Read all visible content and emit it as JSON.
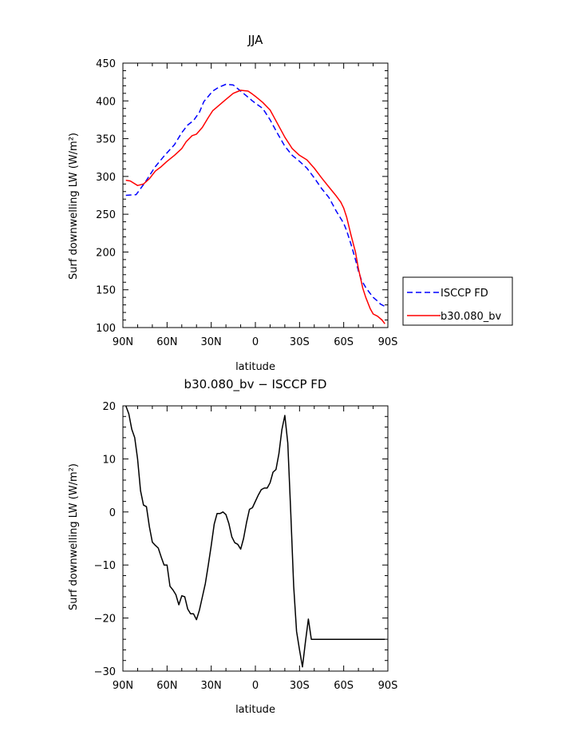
{
  "chart_data": [
    {
      "type": "line",
      "title": "JJA",
      "xlabel": "latitude",
      "ylabel": "Surf downwelling LW (W/m²)",
      "xlim": [
        90,
        -90
      ],
      "ylim": [
        100,
        450
      ],
      "x_ticks": [
        90,
        60,
        30,
        0,
        -30,
        -60,
        -90
      ],
      "x_tick_labels": [
        "90N",
        "60N",
        "30N",
        "0",
        "30S",
        "60S",
        "90S"
      ],
      "y_ticks": [
        100,
        150,
        200,
        250,
        300,
        350,
        400,
        450
      ],
      "y_tick_labels": [
        "100",
        "150",
        "200",
        "250",
        "300",
        "350",
        "400",
        "450"
      ],
      "legend_position": "outside-right",
      "series": [
        {
          "name": "ISCCP FD",
          "color": "#0000ff",
          "style": "dashed",
          "x": [
            88,
            81,
            75,
            68,
            62,
            55,
            50,
            46,
            42,
            38,
            35,
            32,
            29,
            25,
            20,
            15,
            10,
            5,
            2,
            0,
            -5,
            -10,
            -15,
            -20,
            -25,
            -30,
            -35,
            -40,
            -45,
            -50,
            -55,
            -60,
            -62,
            -65,
            -68,
            -70,
            -72,
            -75,
            -78,
            -80,
            -83,
            -85,
            -88
          ],
          "y": [
            275,
            276,
            292,
            313,
            327,
            342,
            358,
            368,
            374,
            385,
            399,
            406,
            413,
            418,
            422,
            421,
            413,
            405,
            400,
            397,
            390,
            375,
            357,
            340,
            328,
            320,
            311,
            298,
            284,
            272,
            254,
            238,
            228,
            210,
            190,
            175,
            163,
            153,
            145,
            140,
            135,
            131,
            128
          ]
        },
        {
          "name": "b30.080_bv",
          "color": "#ff0000",
          "style": "solid",
          "x": [
            88,
            85,
            80,
            76,
            72,
            68,
            64,
            60,
            55,
            50,
            47,
            43,
            40,
            36,
            32,
            29,
            26,
            20,
            15,
            10,
            5,
            2,
            0,
            -5,
            -10,
            -15,
            -20,
            -25,
            -30,
            -35,
            -40,
            -45,
            -50,
            -55,
            -58,
            -60,
            -62,
            -65,
            -68,
            -70,
            -73,
            -75,
            -78,
            -80,
            -83,
            -86,
            -88
          ],
          "y": [
            295,
            294,
            288,
            290,
            297,
            307,
            313,
            320,
            328,
            337,
            346,
            354,
            356,
            365,
            378,
            387,
            392,
            402,
            410,
            414,
            413,
            409,
            406,
            398,
            388,
            370,
            352,
            337,
            328,
            322,
            311,
            298,
            286,
            274,
            266,
            258,
            246,
            222,
            200,
            178,
            152,
            140,
            125,
            118,
            115,
            110,
            105
          ]
        }
      ]
    },
    {
      "type": "line",
      "title": "b30.080_bv − ISCCP FD",
      "xlabel": "latitude",
      "ylabel": "Surf downwelling LW (W/m²)",
      "xlim": [
        90,
        -90
      ],
      "ylim": [
        -30,
        20
      ],
      "x_ticks": [
        90,
        60,
        30,
        0,
        -30,
        -60,
        -90
      ],
      "x_tick_labels": [
        "90N",
        "60N",
        "30N",
        "0",
        "30S",
        "60S",
        "90S"
      ],
      "y_ticks": [
        -30,
        -20,
        -10,
        0,
        10,
        20
      ],
      "y_tick_labels": [
        "−30",
        "−20",
        "−10",
        "0",
        "10",
        "20"
      ],
      "series": [
        {
          "color": "#000000",
          "style": "solid",
          "x": [
            88,
            86,
            84,
            82,
            80,
            78,
            76,
            74,
            72,
            70,
            68,
            66,
            64,
            62,
            60,
            58,
            56,
            54,
            52,
            50,
            48,
            46,
            44,
            42,
            40,
            38,
            36,
            34,
            32,
            30,
            28,
            26,
            24,
            22,
            20,
            18,
            16,
            14,
            12,
            10,
            8,
            6,
            4,
            2,
            0,
            -2,
            -4,
            -6,
            -8,
            -10,
            -12,
            -14,
            -16,
            -18,
            -20,
            -22,
            -24,
            -26,
            -28,
            -30,
            -32,
            -34,
            -36,
            -38,
            -40,
            -42,
            -44,
            -46,
            -48,
            -50,
            -52,
            -54,
            -56,
            -58,
            -60,
            -62,
            -64,
            -66,
            -68,
            -70,
            -72,
            -74,
            -76,
            -78,
            -80,
            -82,
            -84,
            -86,
            -88
          ],
          "y": [
            20,
            18.5,
            15.6,
            14,
            10,
            4,
            1.3,
            1,
            -2.8,
            -5.7,
            -6.3,
            -6.8,
            -8.5,
            -10,
            -10,
            -14,
            -14.7,
            -15.6,
            -17.5,
            -15.8,
            -16,
            -18.3,
            -19.2,
            -19.2,
            -20.3,
            -18.5,
            -16,
            -13.5,
            -10,
            -6.3,
            -2.3,
            -0.3,
            -0.3,
            0,
            -0.5,
            -2.2,
            -4.7,
            -5.8,
            -6.1,
            -7,
            -5,
            -2,
            0.5,
            0.8,
            2,
            3.2,
            4.2,
            4.5,
            4.5,
            5.5,
            7.5,
            8,
            11,
            15.5,
            18.2,
            13,
            0,
            -14,
            -22.5,
            -26,
            -29.2,
            -24.5,
            -20.2,
            -24,
            -24,
            -24,
            -24,
            -24,
            -24,
            -24,
            -24,
            -24,
            -24,
            -24,
            -24,
            -24,
            -24,
            -24,
            -24,
            -24,
            -24,
            -24,
            -24,
            -24,
            -24,
            -24,
            -24,
            -24,
            -24
          ]
        }
      ]
    }
  ]
}
